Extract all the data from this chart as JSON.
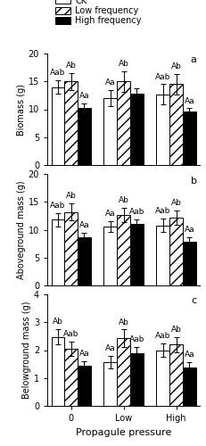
{
  "panel_a": {
    "ylabel": "Biomass (g)",
    "ylim": [
      0,
      20
    ],
    "yticks": [
      0,
      5,
      10,
      15,
      20
    ],
    "label": "a",
    "ck_values": [
      14.0,
      12.0,
      12.7
    ],
    "ck_errors": [
      1.2,
      1.5,
      1.8
    ],
    "lf_values": [
      15.0,
      15.0,
      14.5
    ],
    "lf_errors": [
      1.5,
      1.8,
      1.8
    ],
    "hf_values": [
      10.3,
      12.8,
      9.6
    ],
    "hf_errors": [
      0.8,
      1.0,
      0.6
    ],
    "ck_labels": [
      "Aab",
      "Aa",
      "Aab"
    ],
    "lf_labels": [
      "Ab",
      "Ab",
      "Ab"
    ],
    "hf_labels": [
      "Aa",
      "",
      "Aa"
    ]
  },
  "panel_b": {
    "ylabel": "Aboveground mass (g)",
    "ylim": [
      0,
      20
    ],
    "yticks": [
      0,
      5,
      10,
      15,
      20
    ],
    "label": "b",
    "ck_values": [
      11.8,
      10.6,
      10.8
    ],
    "ck_errors": [
      1.2,
      1.0,
      1.2
    ],
    "lf_values": [
      13.2,
      12.6,
      12.2
    ],
    "lf_errors": [
      1.5,
      1.3,
      1.3
    ],
    "hf_values": [
      8.6,
      11.0,
      7.9
    ],
    "hf_errors": [
      0.9,
      0.8,
      0.7
    ],
    "ck_labels": [
      "Aab",
      "Aa",
      "Aab"
    ],
    "lf_labels": [
      "Ab",
      "Ab",
      "Ab"
    ],
    "hf_labels": [
      "Aa",
      "Aab",
      "Aa"
    ]
  },
  "panel_c": {
    "ylabel": "Belowground mass (g)",
    "ylim": [
      0,
      4
    ],
    "yticks": [
      0,
      1,
      2,
      3,
      4
    ],
    "label": "c",
    "groups": [
      "0",
      "Low",
      "High"
    ],
    "ck_values": [
      2.48,
      1.58,
      2.0
    ],
    "ck_errors": [
      0.28,
      0.22,
      0.25
    ],
    "lf_values": [
      2.05,
      2.42,
      2.2
    ],
    "lf_errors": [
      0.25,
      0.32,
      0.28
    ],
    "hf_values": [
      1.45,
      1.9,
      1.38
    ],
    "hf_errors": [
      0.15,
      0.22,
      0.18
    ],
    "ck_labels": [
      "Ab",
      "Aa",
      "Aab"
    ],
    "lf_labels": [
      "Aab",
      "Ab",
      "Ab"
    ],
    "hf_labels": [
      "Aa",
      "Aab",
      "Aa"
    ]
  },
  "xlabel": "Propagule pressure",
  "bar_width": 0.25,
  "fontsize": 7,
  "annot_fontsize": 6.5,
  "panel_label_fontsize": 8
}
